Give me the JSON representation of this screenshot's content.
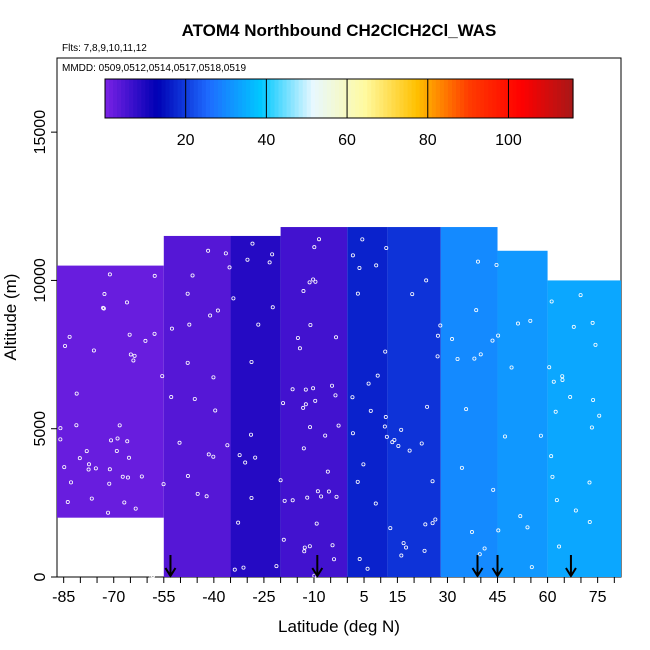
{
  "chart_data": {
    "type": "heatmap",
    "title": "ATOM4 Northbound CH2ClCH2Cl_WAS",
    "flights_label": "Flts: 7,8,9,10,11,12",
    "mmdd_label": "MMDD: 0509,0512,0514,0517,0518,0519",
    "xlabel": "Latitude (deg N)",
    "ylabel": "Altitude (m)",
    "xlim": [
      -87,
      82
    ],
    "ylim": [
      0,
      17500
    ],
    "x_tick_labels": [
      "-85",
      "-70",
      "-55",
      "-40",
      "-25",
      "-10",
      "5",
      "15",
      "30",
      "45",
      "60",
      "75"
    ],
    "y_tick_labels": [
      "0",
      "5000",
      "10000",
      "15000"
    ],
    "colorbar": {
      "range": [
        0,
        116
      ],
      "tick_labels": [
        "20",
        "40",
        "60",
        "80",
        "100"
      ],
      "colors": [
        "#7b22e6",
        "#0000b4",
        "#1e6cff",
        "#00c8ff",
        "#e8f8ff",
        "#fffaa0",
        "#ffc000",
        "#ff3c00",
        "#ff0000",
        "#a81818"
      ]
    },
    "arrow_latitudes": [
      -53,
      -9,
      39,
      45,
      67
    ],
    "regions": [
      {
        "lat": [
          -87,
          -55
        ],
        "alt": [
          2000,
          10500
        ],
        "value": 2
      },
      {
        "lat": [
          -55,
          -35
        ],
        "alt": [
          0,
          11500
        ],
        "value": 4
      },
      {
        "lat": [
          -35,
          -20
        ],
        "alt": [
          0,
          11500
        ],
        "value": 9
      },
      {
        "lat": [
          -20,
          0
        ],
        "alt": [
          0,
          11800
        ],
        "value": 6
      },
      {
        "lat": [
          0,
          12
        ],
        "alt": [
          0,
          11800
        ],
        "value": 17
      },
      {
        "lat": [
          12,
          28
        ],
        "alt": [
          0,
          11800
        ],
        "value": 19
      },
      {
        "lat": [
          28,
          45
        ],
        "alt": [
          0,
          11800
        ],
        "value": 30
      },
      {
        "lat": [
          45,
          60
        ],
        "alt": [
          0,
          11000
        ],
        "value": 32
      },
      {
        "lat": [
          60,
          82
        ],
        "alt": [
          0,
          10000
        ],
        "value": 34
      }
    ]
  }
}
